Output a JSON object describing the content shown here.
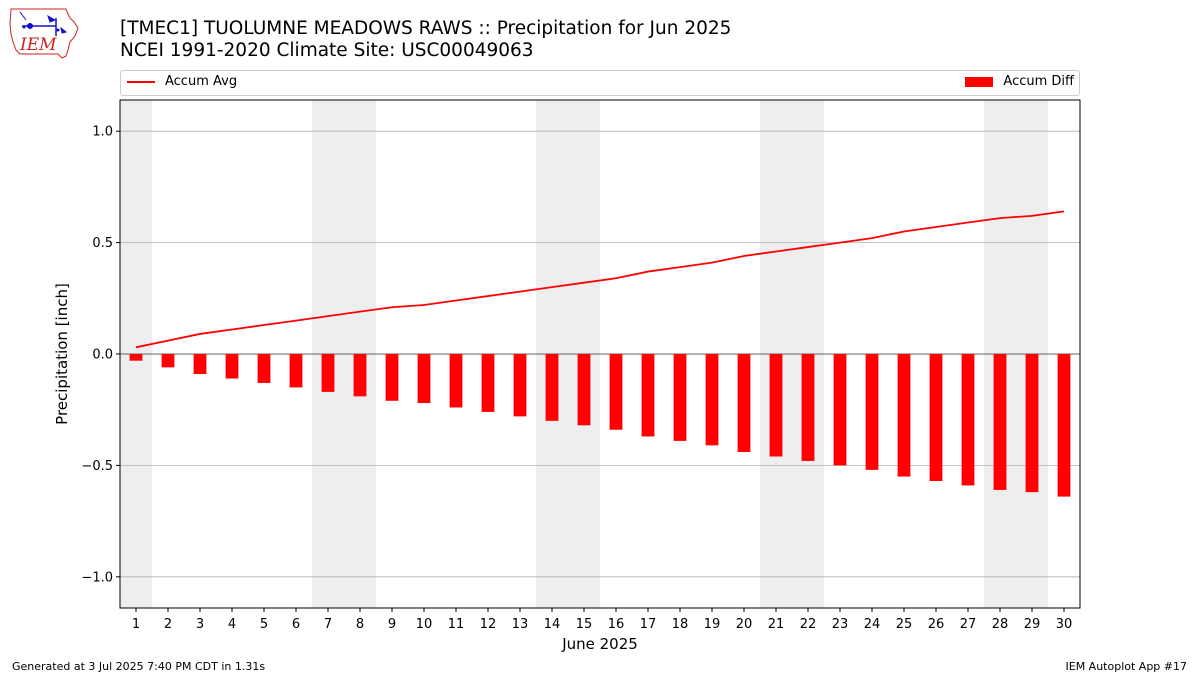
{
  "header": {
    "title_line1": "[TMEC1] TUOLUMNE MEADOWS RAWS :: Precipitation for Jun 2025",
    "title_line2": "NCEI 1991-2020 Climate Site: USC00049063",
    "logo_text": "IEM"
  },
  "legend": {
    "line_label": "Accum Avg",
    "bar_label": "Accum Diff",
    "placement": "top-spanning"
  },
  "footer": {
    "left": "Generated at 3 Jul 2025 7:40 PM CDT in 1.31s",
    "right": "IEM Autoplot App #17"
  },
  "colors": {
    "series": "#ff0000",
    "weekend_band": "#eeeeee",
    "grid": "#b0b0b0",
    "logo_blue": "#1010cc",
    "logo_red": "#cc2222"
  },
  "chart_data": {
    "type": "bar",
    "xlabel": "June 2025",
    "ylabel": "Precipitation [inch]",
    "ylim": [
      -1.14,
      1.14
    ],
    "yticks": [
      -1.0,
      -0.5,
      0.0,
      0.5,
      1.0
    ],
    "ytick_labels": [
      "−1.0",
      "−0.5",
      "0.0",
      "0.5",
      "1.0"
    ],
    "grid": "horizontal",
    "x": [
      1,
      2,
      3,
      4,
      5,
      6,
      7,
      8,
      9,
      10,
      11,
      12,
      13,
      14,
      15,
      16,
      17,
      18,
      19,
      20,
      21,
      22,
      23,
      24,
      25,
      26,
      27,
      28,
      29,
      30
    ],
    "weekend_days": [
      1,
      7,
      8,
      14,
      15,
      21,
      22,
      28,
      29
    ],
    "series": [
      {
        "name": "Accum Avg",
        "kind": "line",
        "values": [
          0.03,
          0.06,
          0.09,
          0.11,
          0.13,
          0.15,
          0.17,
          0.19,
          0.21,
          0.22,
          0.24,
          0.26,
          0.28,
          0.3,
          0.32,
          0.34,
          0.37,
          0.39,
          0.41,
          0.44,
          0.46,
          0.48,
          0.5,
          0.52,
          0.55,
          0.57,
          0.59,
          0.61,
          0.62,
          0.64
        ]
      },
      {
        "name": "Accum Diff",
        "kind": "bar",
        "values": [
          -0.03,
          -0.06,
          -0.09,
          -0.11,
          -0.13,
          -0.15,
          -0.17,
          -0.19,
          -0.21,
          -0.22,
          -0.24,
          -0.26,
          -0.28,
          -0.3,
          -0.32,
          -0.34,
          -0.37,
          -0.39,
          -0.41,
          -0.44,
          -0.46,
          -0.48,
          -0.5,
          -0.52,
          -0.55,
          -0.57,
          -0.59,
          -0.61,
          -0.62,
          -0.64
        ]
      }
    ]
  }
}
